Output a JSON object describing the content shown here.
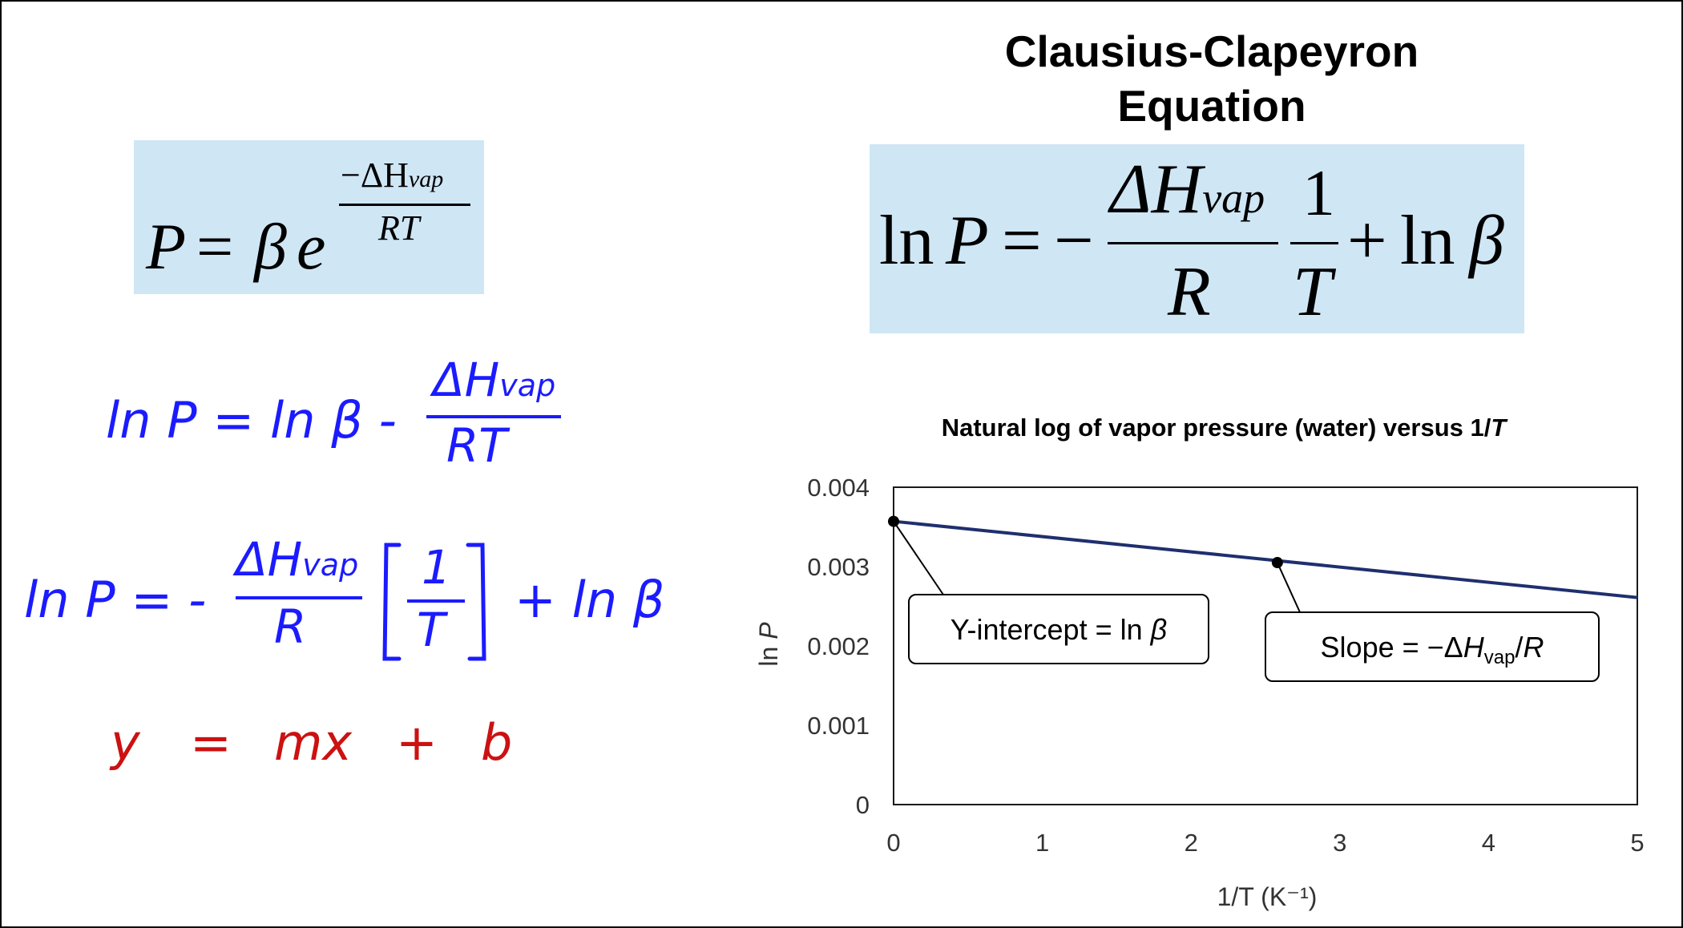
{
  "slide_title": {
    "line1": "Clausius-Clapeyron",
    "line2": "Equation"
  },
  "equations": {
    "exponential": {
      "lhs": "P",
      "equals": "=",
      "beta": "β",
      "e": "e",
      "exp_numerator": "−ΔH",
      "exp_numerator_sub": "vap",
      "exp_denominator": "RT"
    },
    "linear_form": {
      "ln": "ln",
      "P": "P",
      "equals": "=",
      "minus": "−",
      "numerator": "ΔH",
      "numerator_sub": "vap",
      "denominator": "R",
      "frac_num": "1",
      "frac_den": "T",
      "plus": "+",
      "ln_beta": "ln",
      "beta": "β"
    },
    "handwritten_1": {
      "lhs": "ln P = ln β -",
      "numerator": "ΔH",
      "numerator_sub": "vap",
      "denominator": "RT"
    },
    "handwritten_2": {
      "lhs": "ln P = -",
      "numerator": "ΔH",
      "numerator_sub": "vap",
      "denominator": "R",
      "frac_num": "1",
      "frac_den": "T",
      "rhs": "+ ln β"
    },
    "handwritten_3": {
      "y": "y",
      "eq": "=",
      "mx": "mx",
      "plus": "+",
      "b": "b"
    }
  },
  "colors": {
    "box": "#cfe6f5",
    "handwriting_blue": "#1b1bff",
    "handwriting_red": "#cc1111",
    "series_line": "#1f2f6e"
  },
  "chart_data": {
    "type": "line",
    "title": "Natural log of vapor pressure (water) versus 1/",
    "title_italic_part": "T",
    "xlabel": "1/T (K⁻¹)",
    "ylabel_prefix": "ln ",
    "ylabel_italic": "P",
    "xlim": [
      0,
      5
    ],
    "ylim": [
      0,
      0.004
    ],
    "x_ticks": [
      "0",
      "1",
      "2",
      "3",
      "4",
      "5"
    ],
    "y_ticks": [
      "0",
      "0.001",
      "0.002",
      "0.003",
      "0.004"
    ],
    "grid": false,
    "series": [
      {
        "x": [
          0,
          5
        ],
        "y": [
          0.00357,
          0.00261
        ]
      }
    ],
    "marked_points": [
      {
        "x": 0,
        "y": 0.00357
      },
      {
        "x": 2.58,
        "y": 0.00305
      }
    ],
    "annotations": [
      {
        "text": "Y-intercept = ln β",
        "parts": [
          "Y-intercept = ln ",
          "β"
        ]
      },
      {
        "text": "Slope = −ΔHvap/R",
        "parts": [
          "Slope = −Δ",
          "H",
          "vap",
          "/",
          "R"
        ]
      }
    ]
  }
}
